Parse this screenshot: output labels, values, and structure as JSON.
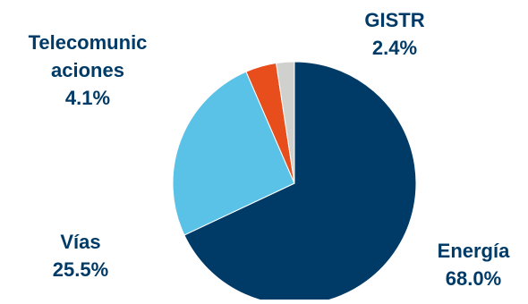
{
  "chart_data": {
    "type": "pie",
    "title": "",
    "start_angle_deg": 0,
    "direction": "clockwise",
    "slices": [
      {
        "label": "Energía",
        "value": 68.0,
        "value_label": "68.0%",
        "color": "#003A66",
        "label_color": "#003A66"
      },
      {
        "label": "Vías",
        "value": 25.5,
        "value_label": "25.5%",
        "color": "#5BC2E7",
        "label_color": "#003A66"
      },
      {
        "label": "Telecomunicaciones",
        "label_lines": [
          "Telecomunic",
          "aciones"
        ],
        "value": 4.1,
        "value_label": "4.1%",
        "color": "#E84E1B",
        "label_color": "#003A66"
      },
      {
        "label": "GISTR",
        "value": 2.4,
        "value_label": "2.4%",
        "color": "#D0D0CE",
        "label_color": "#003A66"
      }
    ]
  }
}
